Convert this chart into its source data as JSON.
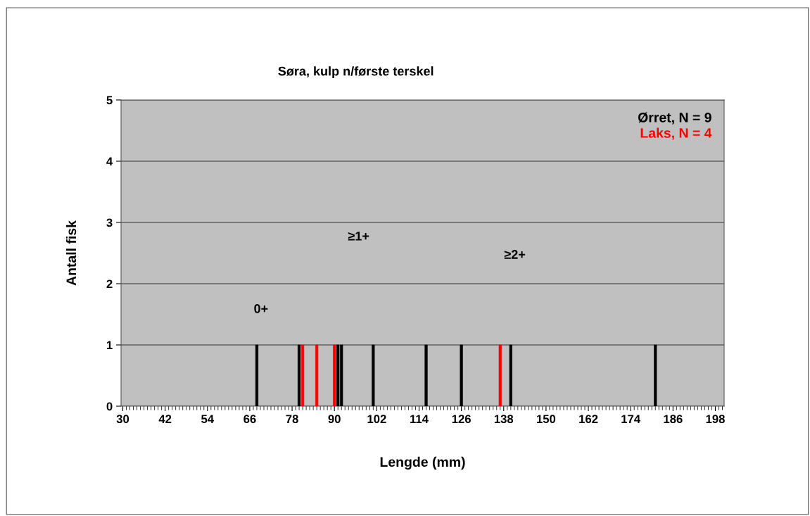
{
  "chart_data": {
    "type": "bar",
    "title": "Søra, kulp n/første terskel",
    "xlabel": "Lengde (mm)",
    "ylabel": "Antall fisk",
    "series": [
      {
        "name": "Ørret, N = 9",
        "color": "#000000",
        "x": [
          68,
          80,
          91,
          92,
          101,
          116,
          126,
          140,
          181
        ],
        "values": [
          1,
          1,
          1,
          1,
          1,
          1,
          1,
          1,
          1
        ]
      },
      {
        "name": "Laks, N = 4",
        "color": "#ff0000",
        "x": [
          81,
          85,
          90,
          137
        ],
        "values": [
          1,
          1,
          1,
          1
        ]
      }
    ],
    "xlim": [
      29.5,
      200.5
    ],
    "xticks": [
      30,
      42,
      54,
      66,
      78,
      90,
      102,
      114,
      126,
      138,
      150,
      162,
      174,
      186,
      198
    ],
    "ylim": [
      0,
      5
    ],
    "yticks": [
      0,
      1,
      2,
      3,
      4,
      5
    ],
    "grid": "y",
    "legend": "top right",
    "annotations": [
      "0+",
      "≥1+",
      "≥2+"
    ]
  }
}
